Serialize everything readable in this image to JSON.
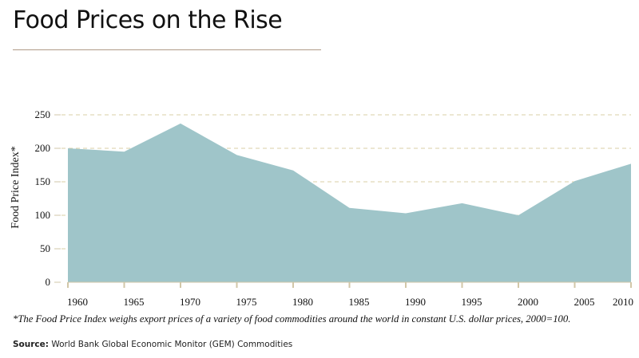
{
  "header": {
    "title": "Food Prices on the Rise"
  },
  "chart_data": {
    "type": "area",
    "title": "Food Prices on the Rise",
    "xlabel": "",
    "ylabel": "Food Price Index*",
    "x": [
      1960,
      1965,
      1970,
      1975,
      1980,
      1985,
      1990,
      1995,
      2000,
      2005,
      2010
    ],
    "values": [
      200,
      195,
      237,
      190,
      167,
      111,
      103,
      118,
      100,
      151,
      177
    ],
    "xticks": [
      "1960",
      "1965",
      "1970",
      "1975",
      "1980",
      "1985",
      "1990",
      "1995",
      "2000",
      "2005",
      "2010"
    ],
    "yticks": [
      "0",
      "50",
      "100",
      "150",
      "200",
      "250"
    ],
    "ylim": [
      0,
      250
    ],
    "xlim": [
      1960,
      2010
    ],
    "grid": "horizontal dashed",
    "colors": {
      "fill": "#9fc5c9",
      "grid": "#d9cfa6",
      "axis": "#d2c7a8",
      "rule": "#b09a86"
    }
  },
  "footnote": "*The Food Price Index weighs export prices of a variety of food commodities around the world in constant U.S. dollar prices, 2000=100.",
  "source": {
    "label": "Source:",
    "text": "World Bank Global Economic Monitor (GEM) Commodities"
  }
}
